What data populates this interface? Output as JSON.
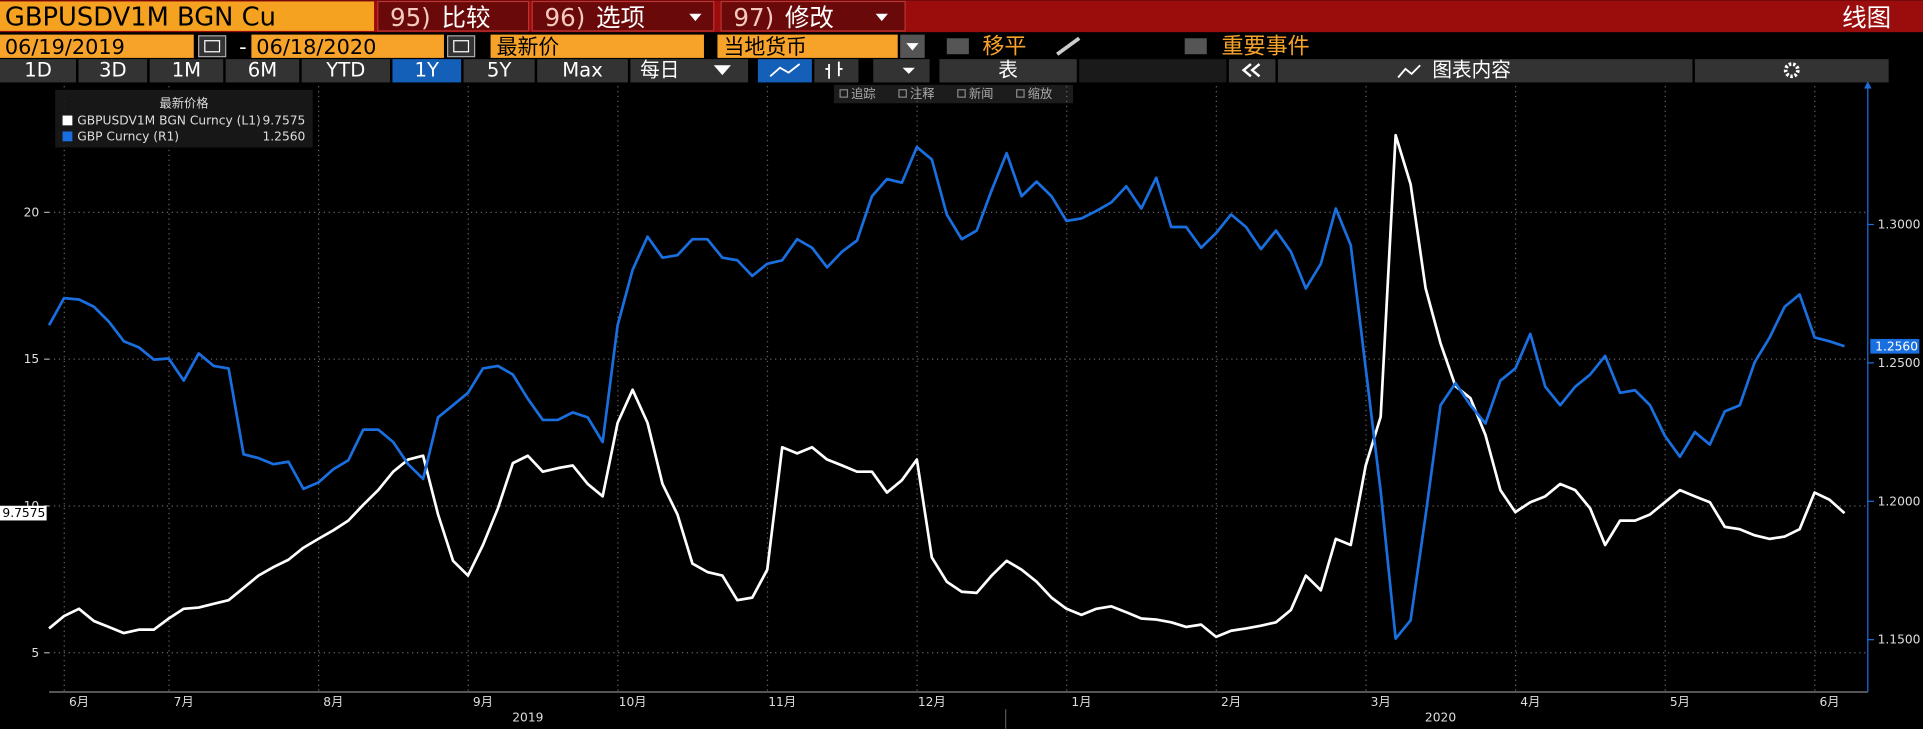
{
  "ui": {
    "security": "GBPUSDV1M BGN Cu",
    "menu": [
      {
        "num": "95)",
        "label": "比较"
      },
      {
        "num": "96)",
        "label": "选项"
      },
      {
        "num": "97)",
        "label": "修改"
      }
    ],
    "view": "线图",
    "start_date": "06/19/2019",
    "date_sep": "-",
    "end_date": "06/18/2020",
    "field": "最新价",
    "currency": "当地货币",
    "moving_avg": "移平",
    "events": "重要事件",
    "periods": [
      "1D",
      "3D",
      "1M",
      "6M",
      "YTD",
      "1Y",
      "5Y",
      "Max"
    ],
    "frequency": "每日",
    "table": "表",
    "chart_content": "图表内容",
    "tools": [
      "追踪",
      "注释",
      "新闻",
      "缩放"
    ]
  },
  "chart_data": {
    "type": "line",
    "legend_title": "最新价格",
    "categories": [
      null,
      null,
      "6月",
      null,
      null,
      null,
      null,
      null,
      null,
      "7月",
      null,
      null,
      null,
      null,
      null,
      null,
      null,
      null,
      null,
      "8月",
      null,
      null,
      null,
      null,
      null,
      null,
      null,
      null,
      null,
      "9月",
      null,
      null,
      null,
      null,
      null,
      null,
      null,
      null,
      null,
      "10月",
      null,
      null,
      null,
      null,
      null,
      null,
      null,
      null,
      null,
      "11月",
      null,
      null,
      null,
      null,
      null,
      null,
      null,
      null,
      null,
      "12月",
      null,
      null,
      null,
      null,
      null,
      null,
      null,
      null,
      null,
      "1月",
      null,
      null,
      null,
      null,
      null,
      null,
      null,
      null,
      null,
      "2月",
      null,
      null,
      null,
      null,
      null,
      null,
      null,
      null,
      null,
      "3月",
      null,
      null,
      null,
      null,
      null,
      null,
      null,
      null,
      null,
      "4月",
      null,
      null,
      null,
      null,
      null,
      null,
      null,
      null,
      null,
      "5月",
      null,
      null,
      null,
      null,
      null,
      null,
      null,
      null,
      null,
      "6月",
      null
    ],
    "year_categories": [
      null,
      null,
      null,
      null,
      null,
      null,
      null,
      null,
      null,
      null,
      null,
      null,
      null,
      null,
      null,
      null,
      null,
      null,
      null,
      null,
      null,
      null,
      null,
      null,
      null,
      null,
      null,
      null,
      null,
      null,
      null,
      null,
      "2019",
      null,
      null,
      null,
      null,
      null,
      null,
      null,
      null,
      null,
      null,
      null,
      null,
      null,
      null,
      null,
      null,
      null,
      null,
      null,
      null,
      null,
      null,
      null,
      null,
      null,
      null,
      null,
      null,
      null,
      null,
      null,
      null,
      null,
      null,
      null,
      null,
      null,
      null,
      null,
      null,
      null,
      null,
      null,
      null,
      null,
      null,
      null,
      null,
      null,
      null,
      null,
      null,
      null,
      null,
      null,
      null,
      null,
      null,
      null,
      null,
      "2020",
      null,
      null,
      null,
      null,
      null,
      null,
      null,
      null,
      null,
      null,
      null,
      null,
      null,
      null,
      null,
      null,
      null,
      null,
      null,
      null,
      null,
      null,
      null,
      null,
      null,
      null,
      null
    ],
    "series": [
      {
        "name": "GBPUSDV1M BGN Curncy (L1)",
        "color": "#ffffff",
        "axis": "y",
        "values": [
          5.83,
          6.25,
          6.5,
          6.08,
          5.88,
          5.67,
          5.79,
          5.79,
          6.17,
          6.5,
          6.54,
          6.67,
          6.79,
          7.21,
          7.63,
          7.92,
          8.17,
          8.58,
          8.88,
          9.17,
          9.5,
          10.04,
          10.54,
          11.17,
          11.58,
          11.71,
          9.71,
          8.13,
          7.63,
          8.67,
          9.92,
          11.46,
          11.71,
          11.17,
          11.29,
          11.38,
          10.75,
          10.33,
          12.83,
          13.96,
          12.83,
          10.75,
          9.71,
          8.04,
          7.75,
          7.63,
          6.79,
          6.88,
          7.83,
          12.0,
          11.79,
          12.0,
          11.58,
          11.38,
          11.17,
          11.17,
          10.46,
          10.88,
          11.58,
          8.25,
          7.42,
          7.08,
          7.04,
          7.63,
          8.13,
          7.83,
          7.42,
          6.88,
          6.5,
          6.29,
          6.5,
          6.58,
          6.38,
          6.17,
          6.13,
          6.04,
          5.88,
          5.96,
          5.54,
          5.75,
          5.83,
          5.92,
          6.04,
          6.46,
          7.63,
          7.13,
          8.88,
          8.67,
          11.38,
          13.04,
          22.63,
          20.96,
          17.42,
          15.54,
          14.08,
          13.67,
          12.42,
          10.54,
          9.79,
          10.13,
          10.33,
          10.75,
          10.54,
          9.92,
          8.67,
          9.5,
          9.5,
          9.71,
          10.13,
          10.54,
          10.33,
          10.13,
          9.29,
          9.21,
          9.0,
          8.88,
          8.96,
          9.21,
          10.46,
          10.21,
          9.7575
        ]
      },
      {
        "name": "GBP Curncy (R1)",
        "color": "#1a6fe0",
        "axis": "y2",
        "last_value_label": "1.2560",
        "values": [
          1.2636,
          1.2734,
          1.2729,
          1.2703,
          1.2649,
          1.2578,
          1.2556,
          1.2512,
          1.2516,
          1.2436,
          1.2534,
          1.2489,
          1.248,
          1.217,
          1.2156,
          1.2134,
          1.2143,
          1.2045,
          1.2068,
          1.2116,
          1.2148,
          1.2259,
          1.2259,
          1.2214,
          1.2134,
          1.2081,
          1.2303,
          1.2347,
          1.2392,
          1.248,
          1.2489,
          1.2458,
          1.237,
          1.2294,
          1.2294,
          1.2321,
          1.2303,
          1.2214,
          1.2636,
          1.2836,
          1.2956,
          1.288,
          1.2889,
          1.2947,
          1.2947,
          1.288,
          1.2871,
          1.2814,
          1.2858,
          1.2871,
          1.2947,
          1.2916,
          1.2845,
          1.2902,
          1.2942,
          1.3102,
          1.3164,
          1.3151,
          1.328,
          1.3235,
          1.3036,
          1.2947,
          1.2978,
          1.3124,
          1.3258,
          1.3102,
          1.3155,
          1.3102,
          1.3013,
          1.3022,
          1.3049,
          1.308,
          1.3138,
          1.3058,
          1.3169,
          1.2991,
          1.2991,
          1.2916,
          1.2969,
          1.3036,
          1.2991,
          1.2911,
          1.2978,
          1.2902,
          1.2769,
          1.2858,
          1.3058,
          1.2925,
          1.248,
          1.2036,
          1.1504,
          1.157,
          1.1948,
          1.2347,
          1.2427,
          1.2347,
          1.2281,
          1.2436,
          1.248,
          1.2605,
          1.2414,
          1.2347,
          1.2414,
          1.2458,
          1.2525,
          1.2392,
          1.2401,
          1.2347,
          1.2236,
          1.2161,
          1.225,
          1.2205,
          1.2325,
          1.2347,
          1.2503,
          1.2592,
          1.2703,
          1.2747,
          1.2592,
          1.2578,
          1.256
        ]
      }
    ],
    "ylim": [
      3.75,
      24.3
    ],
    "yticks": [
      5,
      10,
      15,
      20
    ],
    "y2lim": [
      1.132,
      1.35
    ],
    "y2ticks": [
      {
        "value": 1.15,
        "label": "1.1500"
      },
      {
        "value": 1.2,
        "label": "1.2000"
      },
      {
        "value": 1.25,
        "label": "1.2500"
      },
      {
        "value": 1.3,
        "label": "1.3000"
      }
    ],
    "grid": true,
    "legend": "upper left"
  }
}
